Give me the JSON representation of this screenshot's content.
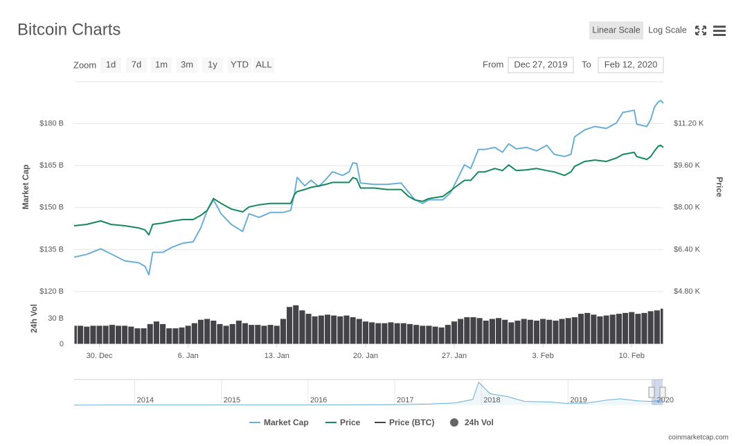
{
  "header": {
    "title": "Bitcoin Charts",
    "scale_buttons": [
      "Linear Scale",
      "Log Scale"
    ]
  },
  "zoom": {
    "label": "Zoom",
    "buttons": [
      "1d",
      "7d",
      "1m",
      "3m",
      "1y",
      "YTD",
      "ALL"
    ]
  },
  "range": {
    "from_label": "From",
    "from": "Dec 27, 2019",
    "to_label": "To",
    "to": "Feb 12, 2020"
  },
  "credit": "coinmarketcap.com",
  "chart_data": [
    {
      "type": "line",
      "x": [
        -2.0,
        -1.0,
        0.1,
        0.9,
        2.0,
        3.1,
        3.6,
        3.9,
        4.2,
        5.0,
        5.8,
        6.6,
        7.4,
        8.0,
        8.5,
        9.0,
        9.6,
        10.4,
        11.3,
        11.8,
        12.6,
        13.5,
        14.5,
        15.1,
        15.4,
        15.6,
        16.2,
        16.7,
        17.3,
        17.8,
        18.4,
        19.2,
        19.7,
        20.0,
        20.3,
        20.6,
        21.7,
        22.7,
        23.8,
        24.4,
        24.9,
        25.5,
        26.0,
        27.1,
        27.7,
        28.2,
        28.8,
        29.3,
        29.9,
        30.4,
        31.2,
        31.8,
        32.3,
        32.9,
        33.7,
        34.5,
        35.3,
        35.9,
        36.7,
        37.2,
        37.5,
        38.3,
        39.1,
        40.0,
        40.8,
        41.3,
        42.2,
        42.4,
        43.2,
        43.5,
        43.8,
        44.1,
        44.3,
        44.5
      ],
      "xlim": [
        -2,
        44.5
      ],
      "xticks": [
        {
          "value": 0,
          "label": "30. Dec"
        },
        {
          "value": 7,
          "label": "6. Jan"
        },
        {
          "value": 14,
          "label": "13. Jan"
        },
        {
          "value": 21,
          "label": "20. Jan"
        },
        {
          "value": 28,
          "label": "27. Jan"
        },
        {
          "value": 35,
          "label": "3. Feb"
        },
        {
          "value": 42,
          "label": "10. Feb"
        }
      ],
      "ylabel": "Market Cap",
      "ylim": [
        120,
        195
      ],
      "yticks": [
        {
          "value": 120,
          "label": "$120 B"
        },
        {
          "value": 135,
          "label": "$135 B"
        },
        {
          "value": 150,
          "label": "$150 B"
        },
        {
          "value": 165,
          "label": "$165 B"
        },
        {
          "value": 180,
          "label": "$180 B"
        }
      ],
      "y2label": "Price",
      "y2lim": [
        4800,
        12800
      ],
      "y2ticks": [
        {
          "value": 4800,
          "label": "$4.80 K"
        },
        {
          "value": 6400,
          "label": "$6.40 K"
        },
        {
          "value": 8000,
          "label": "$8.00 K"
        },
        {
          "value": 9600,
          "label": "$9.60 K"
        },
        {
          "value": 11200,
          "label": "$11.20 K"
        }
      ],
      "grid": true,
      "series": [
        {
          "name": "Market Cap",
          "color": "#6aaed6",
          "values": [
            132.3,
            133.3,
            135.3,
            133.5,
            131,
            130.3,
            129,
            126,
            134,
            134,
            136,
            137.3,
            137.8,
            142.8,
            149,
            152.8,
            147.8,
            144,
            141.5,
            147.8,
            146.5,
            148.3,
            148.3,
            149,
            155.3,
            160.8,
            157.8,
            159.8,
            157.5,
            159.8,
            162.8,
            161.5,
            162.8,
            166,
            165.8,
            158.8,
            158.3,
            158.3,
            158.8,
            155.5,
            152.8,
            151.5,
            152.8,
            152.8,
            155.3,
            159.8,
            165.3,
            164,
            170.8,
            170.8,
            171.5,
            169.8,
            172.8,
            171,
            171.5,
            170.3,
            172.3,
            169,
            168.3,
            169,
            175.3,
            177.8,
            179,
            178.3,
            180.3,
            184,
            184.8,
            179.8,
            179,
            181.5,
            186,
            187.8,
            188.3,
            187.3
          ]
        },
        {
          "name": "Price",
          "color": "#14875b",
          "axis": "y2",
          "values": [
            7307,
            7360,
            7493,
            7360,
            7307,
            7227,
            7147,
            6960,
            7360,
            7413,
            7493,
            7547,
            7547,
            7707,
            7893,
            8347,
            8160,
            7947,
            7840,
            8027,
            8107,
            8160,
            8160,
            8160,
            8507,
            8613,
            8693,
            8773,
            8827,
            8880,
            8960,
            8960,
            8960,
            9147,
            9093,
            8747,
            8747,
            8693,
            8693,
            8427,
            8293,
            8240,
            8347,
            8427,
            8640,
            8827,
            9040,
            9040,
            9360,
            9360,
            9493,
            9413,
            9627,
            9413,
            9440,
            9493,
            9413,
            9360,
            9227,
            9360,
            9573,
            9760,
            9813,
            9760,
            9893,
            10027,
            10107,
            9947,
            9840,
            9947,
            10160,
            10347,
            10373,
            10293
          ]
        },
        {
          "name": "Price (BTC)",
          "color": "#434348",
          "hidden": true
        }
      ]
    },
    {
      "type": "bar",
      "name": "24h Vol",
      "ylabel": "24h Vol",
      "color": "#434348",
      "x": [
        -2,
        -1.5,
        -1,
        -0.5,
        0,
        0.5,
        1,
        1.5,
        2,
        2.5,
        3,
        3.5,
        4,
        4.5,
        5,
        5.5,
        6,
        6.5,
        7,
        7.5,
        8,
        8.5,
        9,
        9.5,
        10,
        10.5,
        11,
        11.5,
        12,
        12.5,
        13,
        13.5,
        14,
        14.5,
        15,
        15.5,
        16,
        16.5,
        17,
        17.5,
        18,
        18.5,
        19,
        19.5,
        20,
        20.5,
        21,
        21.5,
        22,
        22.5,
        23,
        23.5,
        24,
        24.5,
        25,
        25.5,
        26,
        26.5,
        27,
        27.5,
        28,
        28.5,
        29,
        29.5,
        30,
        30.5,
        31,
        31.5,
        32,
        32.5,
        33,
        33.5,
        34,
        34.5,
        35,
        35.5,
        36,
        36.5,
        37,
        37.5,
        38,
        38.5,
        39,
        39.5,
        40,
        40.5,
        41,
        41.5,
        42,
        42.5,
        43,
        43.5,
        44,
        44.5
      ],
      "values": [
        22,
        22,
        21,
        22,
        22,
        22,
        23,
        22,
        22,
        21,
        19,
        19,
        24,
        27,
        24,
        19,
        19,
        20,
        22,
        25,
        29,
        30,
        28,
        24,
        22,
        24,
        28,
        25,
        23,
        23,
        22,
        23,
        22,
        30,
        44,
        46,
        40,
        36,
        33,
        34,
        35,
        34,
        33,
        34,
        32,
        30,
        27,
        26,
        25,
        25,
        26,
        25,
        25,
        24,
        23,
        22,
        22,
        21,
        20,
        23,
        27,
        30,
        32,
        32,
        31,
        28,
        30,
        31,
        29,
        26,
        28,
        30,
        29,
        28,
        30,
        29,
        28,
        30,
        31,
        32,
        36,
        37,
        35,
        33,
        34,
        35,
        36,
        37,
        38,
        36,
        37,
        39,
        40,
        42
      ],
      "ylim": [
        0,
        60
      ],
      "yticks": [
        0,
        {
          "value": 30,
          "label": "30 B"
        }
      ]
    },
    {
      "type": "area",
      "color": "#6aaed6",
      "x": [
        2013.3,
        2014.0,
        2014.5,
        2015.0,
        2016.0,
        2016.5,
        2017.0,
        2017.4,
        2017.7,
        2017.9,
        2017.97,
        2018.1,
        2018.3,
        2018.5,
        2018.8,
        2018.95,
        2019.2,
        2019.45,
        2019.6,
        2019.8,
        2019.95,
        2020.1
      ],
      "values": [
        1,
        8,
        8,
        4,
        6,
        10,
        16,
        40,
        80,
        200,
        800,
        400,
        300,
        130,
        110,
        65,
        65,
        180,
        220,
        150,
        130,
        180
      ],
      "xlim": [
        2013.3,
        2020.1
      ],
      "xticks": [
        2014,
        2015,
        2016,
        2017,
        2018,
        2019,
        2020
      ],
      "ylim": [
        0,
        850
      ]
    }
  ]
}
